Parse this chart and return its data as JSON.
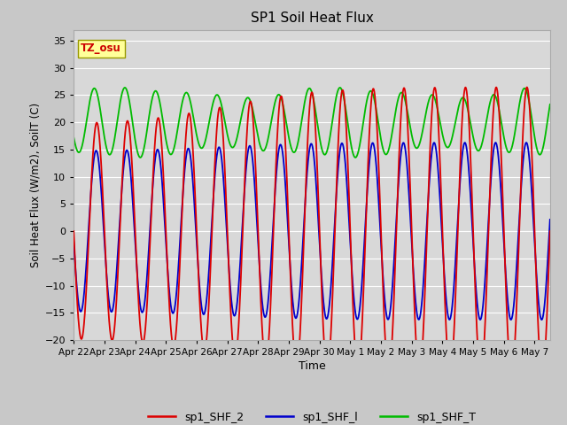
{
  "title": "SP1 Soil Heat Flux",
  "xlabel": "Time",
  "ylabel": "Soil Heat Flux (W/m2), SoilT (C)",
  "ylim": [
    -20,
    37
  ],
  "yticks": [
    -20,
    -15,
    -10,
    -5,
    0,
    5,
    10,
    15,
    20,
    25,
    30,
    35
  ],
  "fig_bg_color": "#c8c8c8",
  "plot_bg_color": "#d8d8d8",
  "line_colors": {
    "sp1_SHF_2": "#dd0000",
    "sp1_SHF_l": "#0000cc",
    "sp1_SHF_T": "#00bb00"
  },
  "tz_label": "TZ_osu",
  "tz_box_color": "#ffff99",
  "tz_text_color": "#cc0000",
  "num_days": 15.5,
  "x_tick_labels": [
    "Apr 22",
    "Apr 23",
    "Apr 24",
    "Apr 25",
    "Apr 26",
    "Apr 27",
    "Apr 28",
    "Apr 29",
    "Apr 30",
    "May 1",
    "May 2",
    "May 3",
    "May 4",
    "May 5",
    "May 6",
    "May 7"
  ]
}
